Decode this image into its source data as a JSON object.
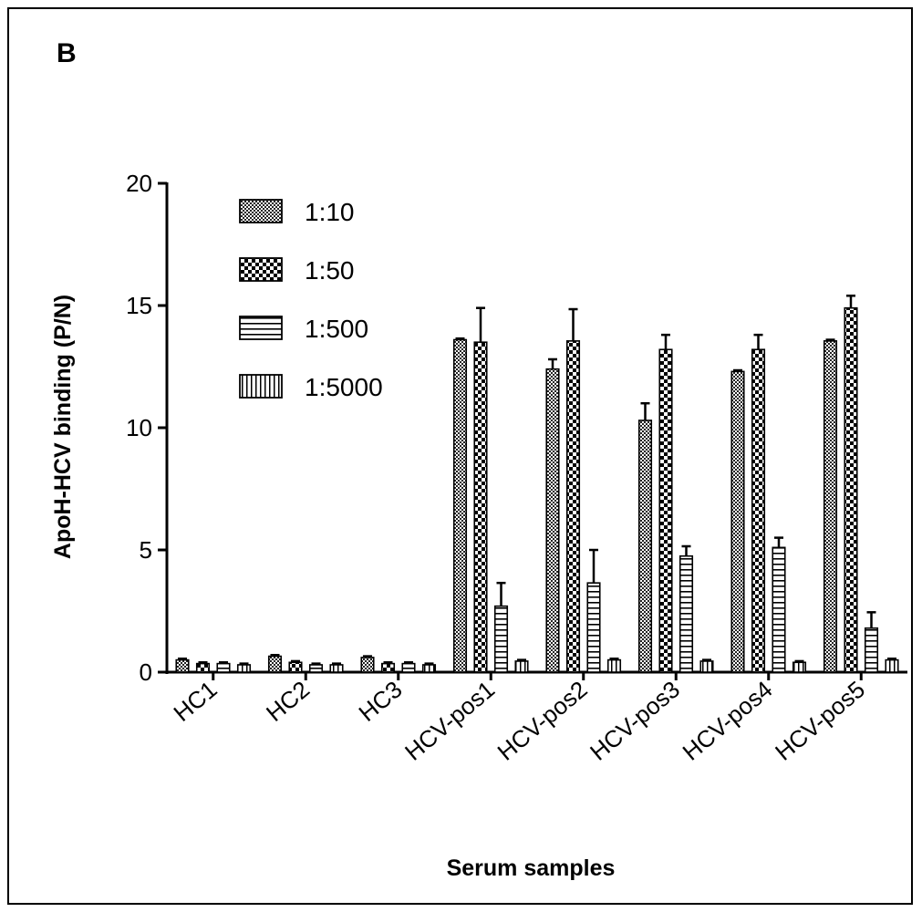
{
  "panel_label": "B",
  "chart_data": {
    "type": "bar",
    "title": "",
    "xlabel": "Serum samples",
    "ylabel": "ApoH-HCV binding (P/N)",
    "ylim": [
      0,
      20
    ],
    "yticks": [
      0,
      5,
      10,
      15,
      20
    ],
    "categories": [
      "HC1",
      "HC2",
      "HC3",
      "HCV-pos1",
      "HCV-pos2",
      "HCV-pos3",
      "HCV-pos4",
      "HCV-pos5"
    ],
    "legend_position": "top-left",
    "series": [
      {
        "name": "1:10",
        "pattern": "fine-checker",
        "values": [
          0.5,
          0.65,
          0.6,
          13.6,
          12.4,
          10.3,
          12.3,
          13.55
        ],
        "errors": [
          0.05,
          0.05,
          0.05,
          0.05,
          0.4,
          0.7,
          0.05,
          0.05
        ]
      },
      {
        "name": "1:50",
        "pattern": "coarse-checker",
        "values": [
          0.35,
          0.4,
          0.35,
          13.5,
          13.55,
          13.2,
          13.2,
          14.9
        ],
        "errors": [
          0.05,
          0.05,
          0.05,
          1.4,
          1.3,
          0.6,
          0.6,
          0.5
        ]
      },
      {
        "name": "1:500",
        "pattern": "horizontal-lines",
        "values": [
          0.35,
          0.3,
          0.35,
          2.7,
          3.65,
          4.75,
          5.1,
          1.8
        ],
        "errors": [
          0.05,
          0.05,
          0.05,
          0.95,
          1.35,
          0.4,
          0.4,
          0.65
        ]
      },
      {
        "name": "1:5000",
        "pattern": "vertical-lines",
        "values": [
          0.3,
          0.3,
          0.3,
          0.45,
          0.5,
          0.45,
          0.4,
          0.5
        ],
        "errors": [
          0.05,
          0.05,
          0.05,
          0.05,
          0.05,
          0.05,
          0.05,
          0.05
        ]
      }
    ]
  }
}
